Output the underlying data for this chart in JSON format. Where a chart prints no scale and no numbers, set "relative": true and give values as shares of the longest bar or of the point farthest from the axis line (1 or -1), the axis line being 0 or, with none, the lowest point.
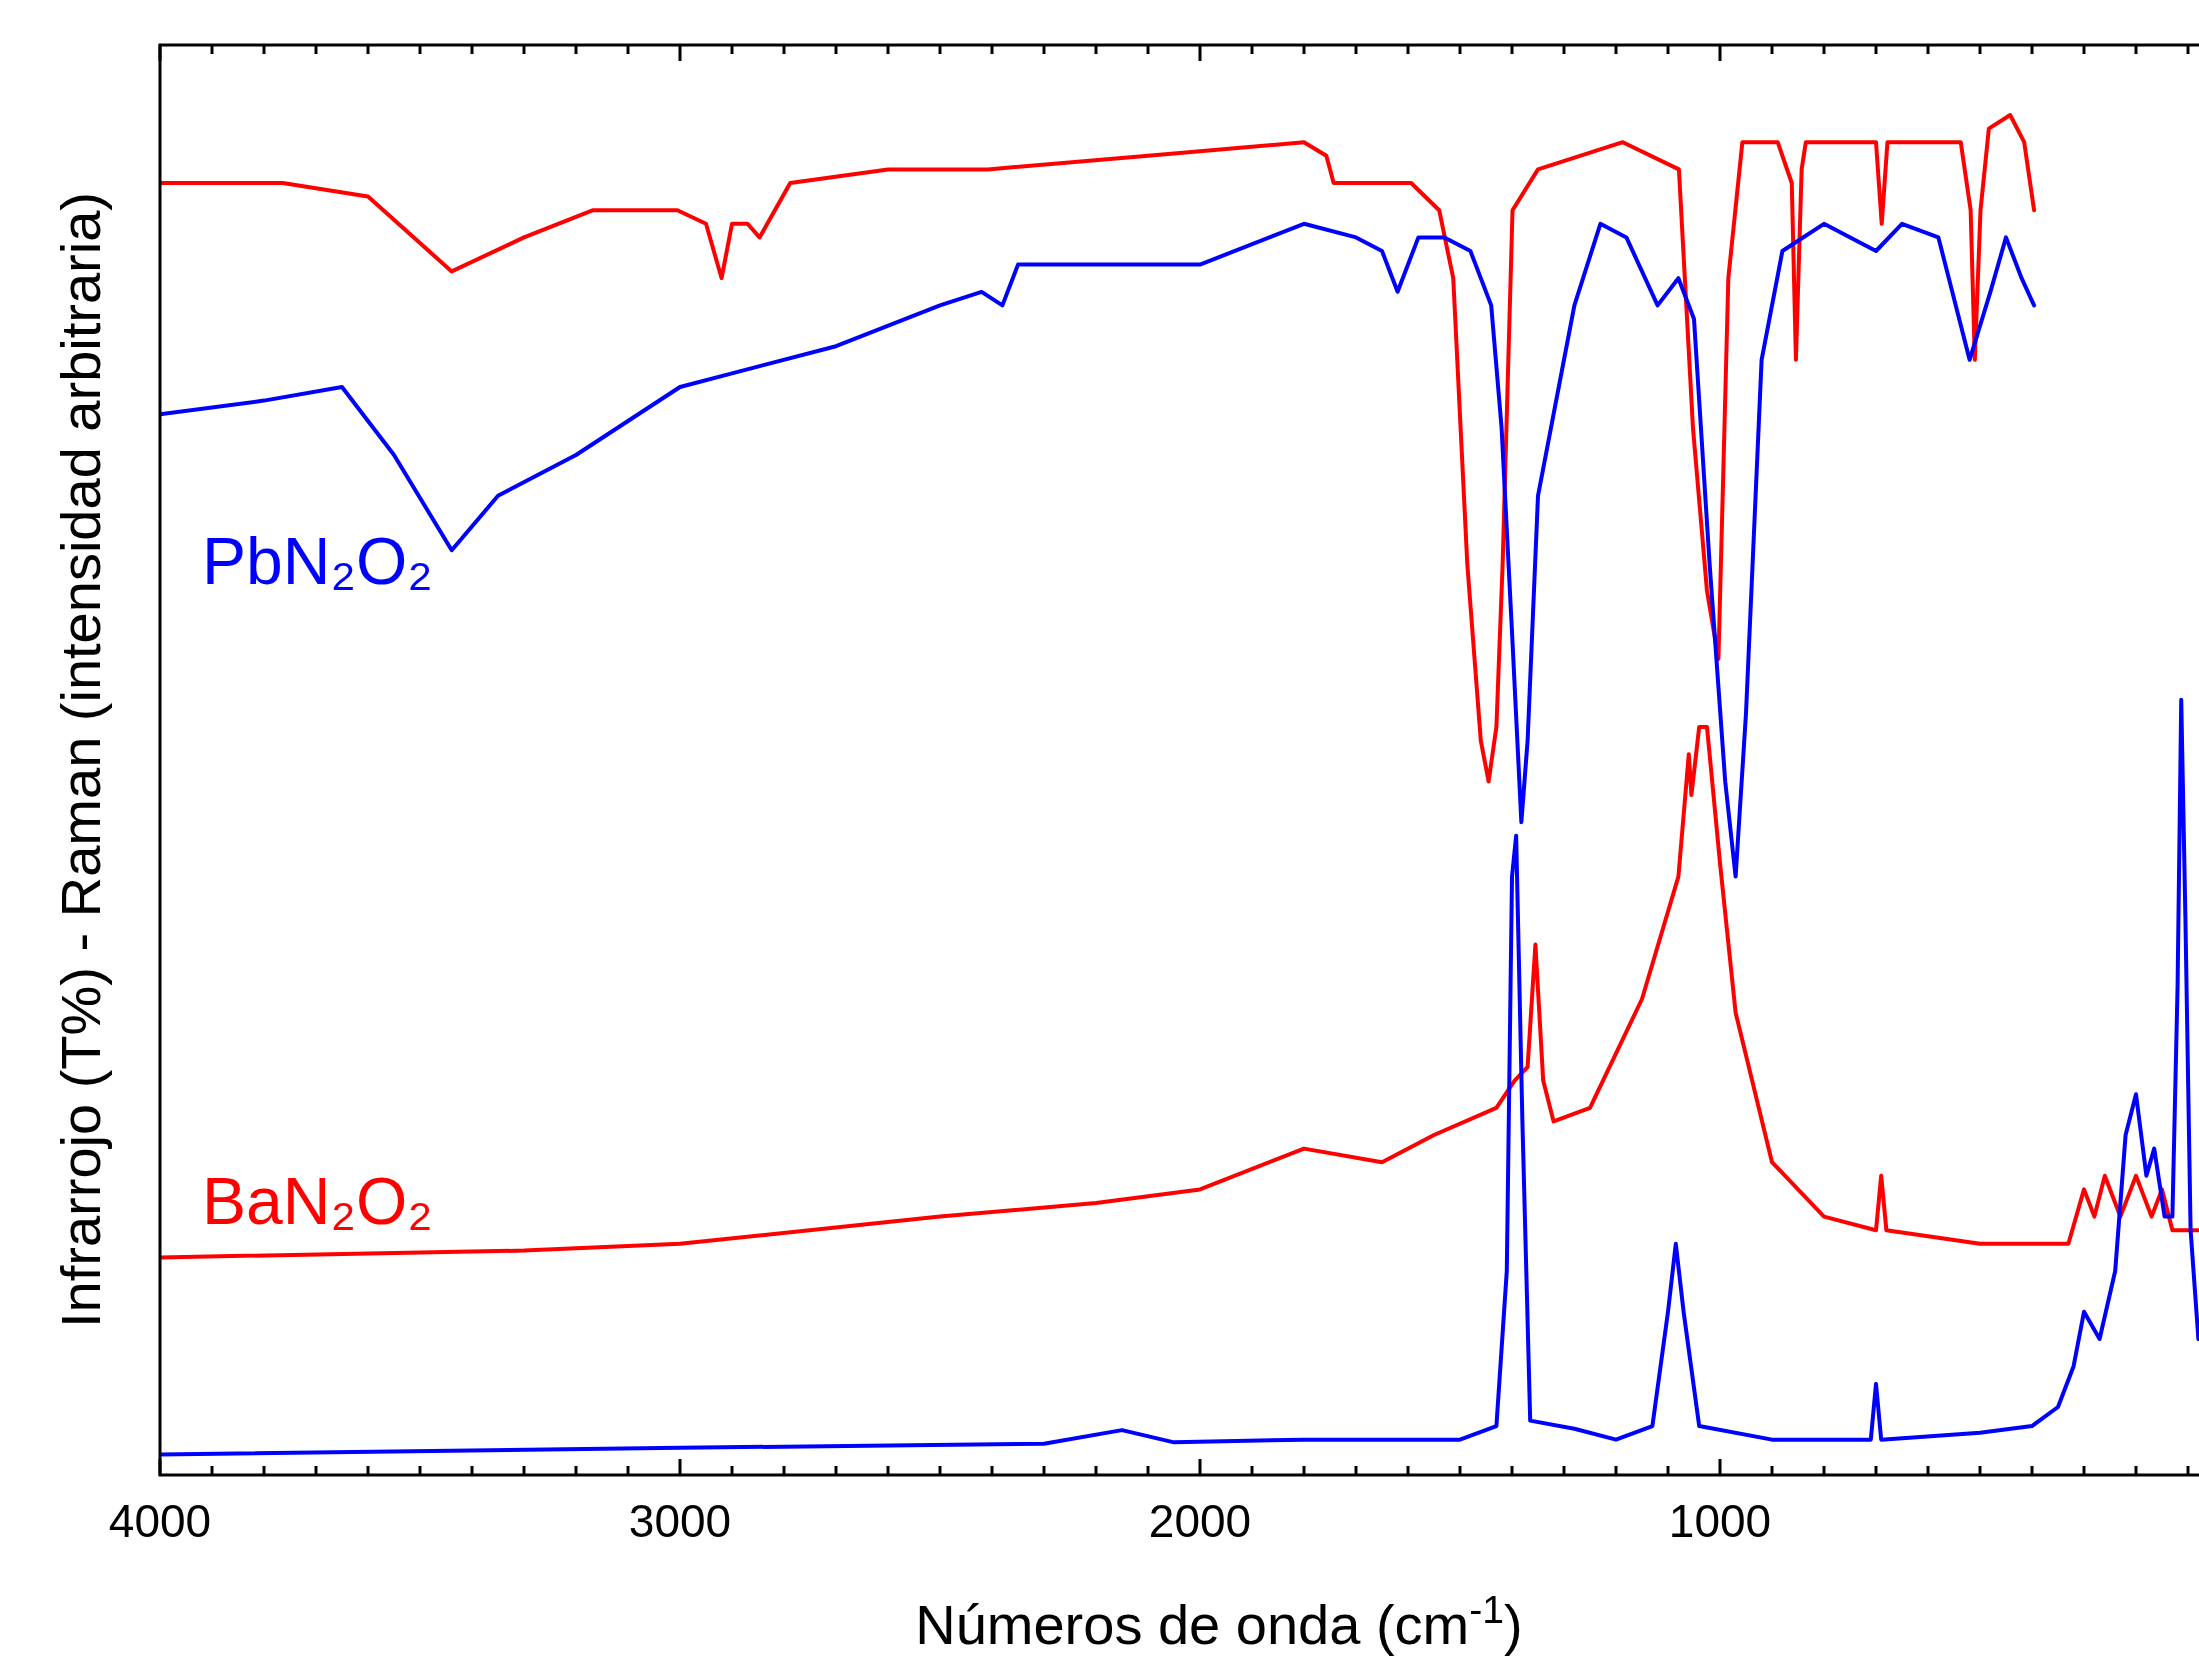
{
  "chart_data": {
    "type": "line",
    "relative": true,
    "xlabel": "Números de onda (cm$^{-1}$)",
    "ylabel": "Infrarrojo (T%) - Raman (intensidad arbitraria)",
    "xlim": [
      4000,
      75
    ],
    "xticks": [
      4000,
      {
        "value": 3900,
        "label": null
      },
      {
        "value": 3800,
        "label": null
      },
      {
        "value": 3700,
        "label": null
      },
      {
        "value": 3600,
        "label": null
      },
      {
        "value": 3500,
        "label": null
      },
      {
        "value": 3400,
        "label": null
      },
      {
        "value": 3300,
        "label": null
      },
      {
        "value": 3200,
        "label": null
      },
      {
        "value": 3100,
        "label": null
      },
      3000,
      {
        "value": 2900,
        "label": null
      },
      {
        "value": 2800,
        "label": null
      },
      {
        "value": 2700,
        "label": null
      },
      {
        "value": 2600,
        "label": null
      },
      {
        "value": 2500,
        "label": null
      },
      {
        "value": 2400,
        "label": null
      },
      {
        "value": 2300,
        "label": null
      },
      {
        "value": 2200,
        "label": null
      },
      {
        "value": 2100,
        "label": null
      },
      2000,
      {
        "value": 1900,
        "label": null
      },
      {
        "value": 1800,
        "label": null
      },
      {
        "value": 1700,
        "label": null
      },
      {
        "value": 1600,
        "label": null
      },
      {
        "value": 1500,
        "label": null
      },
      {
        "value": 1400,
        "label": null
      },
      {
        "value": 1300,
        "label": null
      },
      {
        "value": 1200,
        "label": null
      },
      {
        "value": 1100,
        "label": null
      },
      1000,
      {
        "value": 900,
        "label": null
      },
      {
        "value": 800,
        "label": null
      },
      {
        "value": 700,
        "label": null
      },
      {
        "value": 600,
        "label": null
      },
      {
        "value": 500,
        "label": null
      },
      {
        "value": 400,
        "label": null
      },
      {
        "value": 300,
        "label": null
      },
      {
        "value": 200,
        "label": null
      },
      {
        "value": 100,
        "label": null
      }
    ],
    "grid": false,
    "marker": "none",
    "line_style": "solid",
    "series": [
      {
        "color": "#ff0000",
        "x": [
          4000,
          3764,
          3600,
          3439,
          3300,
          3167,
          3005,
          2950,
          2920,
          2900,
          2870,
          2847,
          2788,
          2600,
          2408,
          2100,
          1800,
          1757,
          1743,
          1650,
          1594,
          1540,
          1513,
          1486,
          1460,
          1445,
          1430,
          1418,
          1399,
          1350,
          1187,
          1079,
          1052,
          1025,
          1003,
          984,
          957,
          889,
          862,
          854,
          843,
          835,
          700,
          689,
          678,
          537,
          518,
          510,
          499,
          483,
          442,
          415,
          396
        ],
        "values": [
          0.95,
          0.95,
          0.94,
          0.885,
          0.91,
          0.93,
          0.93,
          0.92,
          0.88,
          0.92,
          0.92,
          0.91,
          0.95,
          0.96,
          0.96,
          0.97,
          0.98,
          0.97,
          0.95,
          0.95,
          0.95,
          0.93,
          0.88,
          0.67,
          0.54,
          0.51,
          0.55,
          0.67,
          0.93,
          0.96,
          0.98,
          0.96,
          0.77,
          0.65,
          0.6,
          0.88,
          0.98,
          0.98,
          0.95,
          0.82,
          0.96,
          0.98,
          0.98,
          0.92,
          0.98,
          0.98,
          0.93,
          0.82,
          0.93,
          0.99,
          1.0,
          0.98,
          0.93
        ]
      },
      {
        "name": "PbN₂O₂",
        "color": "#0000ff",
        "x": [
          4000,
          3800,
          3650,
          3550,
          3439,
          3350,
          3200,
          3000,
          2900,
          2700,
          2500,
          2420,
          2380,
          2350,
          2300,
          2200,
          2000,
          1800,
          1700,
          1650,
          1620,
          1580,
          1530,
          1480,
          1440,
          1420,
          1400,
          1382,
          1370,
          1350,
          1320,
          1280,
          1230,
          1180,
          1120,
          1080,
          1050,
          1020,
          990,
          970,
          950,
          920,
          880,
          800,
          700,
          650,
          580,
          520,
          480,
          450,
          420,
          396
        ],
        "values": [
          0.78,
          0.79,
          0.8,
          0.75,
          0.68,
          0.72,
          0.75,
          0.8,
          0.81,
          0.83,
          0.86,
          0.87,
          0.86,
          0.89,
          0.89,
          0.89,
          0.89,
          0.92,
          0.91,
          0.9,
          0.87,
          0.91,
          0.91,
          0.9,
          0.86,
          0.77,
          0.62,
          0.48,
          0.54,
          0.72,
          0.78,
          0.86,
          0.92,
          0.91,
          0.86,
          0.88,
          0.85,
          0.67,
          0.51,
          0.44,
          0.56,
          0.82,
          0.9,
          0.92,
          0.9,
          0.92,
          0.91,
          0.82,
          0.87,
          0.91,
          0.88,
          0.86
        ]
      },
      {
        "name": "BaN₂O₂",
        "color": "#ff0000",
        "x": [
          4000,
          3300,
          3000,
          2500,
          2200,
          2000,
          1800,
          1650,
          1550,
          1430,
          1395,
          1370,
          1355,
          1340,
          1320,
          1250,
          1150,
          1080,
          1060,
          1055,
          1040,
          1025,
          1000,
          970,
          900,
          800,
          700,
          690,
          680,
          500,
          330,
          300,
          280,
          260,
          230,
          200,
          170,
          150,
          130,
          75
        ],
        "values": [
          0.16,
          0.165,
          0.17,
          0.19,
          0.2,
          0.21,
          0.24,
          0.23,
          0.25,
          0.27,
          0.29,
          0.3,
          0.39,
          0.29,
          0.26,
          0.27,
          0.35,
          0.44,
          0.53,
          0.5,
          0.55,
          0.55,
          0.45,
          0.34,
          0.23,
          0.19,
          0.18,
          0.22,
          0.18,
          0.17,
          0.17,
          0.21,
          0.19,
          0.22,
          0.19,
          0.22,
          0.19,
          0.21,
          0.18,
          0.18
        ]
      },
      {
        "color": "#0000ff",
        "x": [
          4000,
          3000,
          2300,
          2150,
          2050,
          1800,
          1500,
          1430,
          1410,
          1400,
          1392,
          1380,
          1365,
          1280,
          1200,
          1130,
          1100,
          1085,
          1070,
          1040,
          900,
          710,
          700,
          690,
          500,
          400,
          350,
          320,
          300,
          270,
          240,
          220,
          200,
          180,
          165,
          145,
          130,
          120,
          113,
          105,
          95,
          80
        ],
        "values": [
          0.015,
          0.02,
          0.023,
          0.033,
          0.024,
          0.026,
          0.026,
          0.036,
          0.15,
          0.44,
          0.47,
          0.26,
          0.04,
          0.034,
          0.026,
          0.036,
          0.12,
          0.17,
          0.12,
          0.036,
          0.026,
          0.026,
          0.067,
          0.026,
          0.031,
          0.036,
          0.05,
          0.08,
          0.12,
          0.1,
          0.15,
          0.25,
          0.28,
          0.22,
          0.24,
          0.19,
          0.19,
          0.36,
          0.57,
          0.41,
          0.18,
          0.1
        ]
      }
    ]
  }
}
